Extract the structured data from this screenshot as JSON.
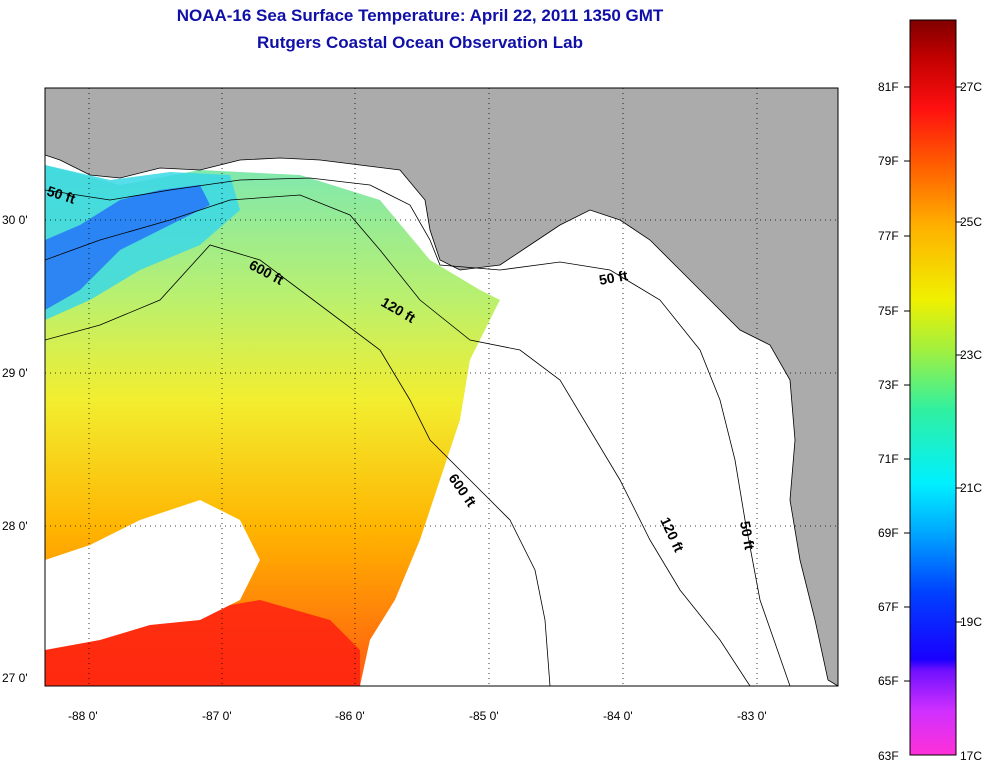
{
  "title_line1": "NOAA-16 Sea Surface Temperature:  April 22, 2011 1350 GMT",
  "title_line2": "Rutgers Coastal Ocean Observation Lab",
  "map": {
    "lat_labels": [
      "30 0'",
      "29 0'",
      "28 0'",
      "27 0'"
    ],
    "lon_labels": [
      "-88 0'",
      "-87 0'",
      "-86 0'",
      "-85 0'",
      "-84 0'",
      "-83 0'"
    ],
    "contour_labels": [
      "50 ft",
      "600 ft",
      "120 ft",
      "50 ft",
      "600 ft",
      "120 ft",
      "50 ft"
    ],
    "colors": {
      "land": "#ababab",
      "nodata": "#ffffff"
    }
  },
  "colorbar": {
    "fahrenheit": [
      "81F",
      "79F",
      "77F",
      "75F",
      "73F",
      "71F",
      "69F",
      "67F",
      "65F",
      "63F"
    ],
    "celsius": [
      "27C",
      "25C",
      "23C",
      "21C",
      "19C",
      "17C"
    ]
  }
}
